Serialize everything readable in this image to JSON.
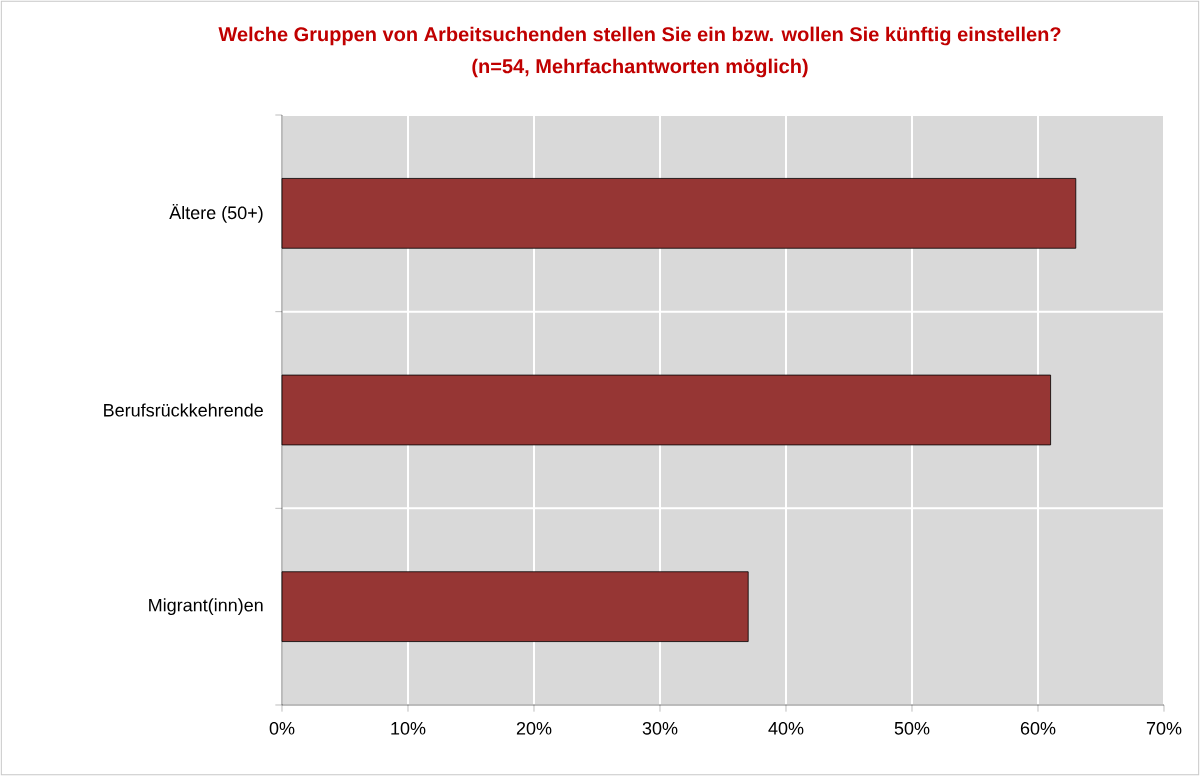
{
  "chart_data": {
    "type": "bar",
    "orientation": "horizontal",
    "title": "Welche Gruppen von Arbeitsuchenden stellen Sie ein bzw. wollen Sie künftig einstellen?",
    "subtitle": "(n=54, Mehrfachantworten möglich)",
    "categories": [
      "Ältere (50+)",
      "Berufsrückkehrende",
      "Migrant(inn)en"
    ],
    "values": [
      63,
      61,
      37
    ],
    "color": "#963634",
    "xlim": [
      0,
      70
    ],
    "xticks": [
      {
        "value": 0,
        "label": "0%"
      },
      {
        "value": 10,
        "label": "10%"
      },
      {
        "value": 20,
        "label": "20%"
      },
      {
        "value": 30,
        "label": "30%"
      },
      {
        "value": 40,
        "label": "40%"
      },
      {
        "value": 50,
        "label": "50%"
      },
      {
        "value": 60,
        "label": "60%"
      },
      {
        "value": 70,
        "label": "70%"
      }
    ],
    "grid": true
  }
}
